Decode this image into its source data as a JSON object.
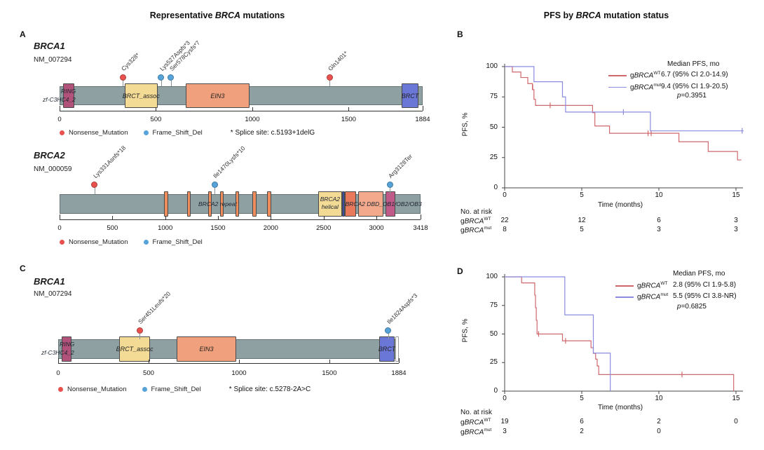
{
  "titles": {
    "left": {
      "pre": "Representative ",
      "italic": "BRCA",
      "post": " mutations"
    },
    "right": {
      "pre": "PFS by ",
      "italic": "BRCA",
      "post": " mutation status"
    }
  },
  "panel_letters": {
    "A": "A",
    "B": "B",
    "C": "C",
    "D": "D"
  },
  "colors": {
    "bar": "#8fa0a3",
    "bar_border": "#647274",
    "nonsense": "#e8514e",
    "frameshift": "#55a3d9",
    "km_wt": "#cf686d",
    "km_mut": "#8b8ce1",
    "axis": "#333333"
  },
  "chart_data": [
    {
      "type": "lollipop",
      "panel": "A",
      "gene": "BRCA1",
      "transcript": "NM_007294",
      "length": 1884,
      "axis_ticks": [
        0,
        500,
        1000,
        1500,
        1884
      ],
      "domains": [
        {
          "name": "RING",
          "start": 20,
          "end": 75,
          "color": "#b0527a",
          "label": ""
        },
        {
          "name": "BRCT_assoc",
          "start": 338,
          "end": 508,
          "color": "#f3db96",
          "label": "BRCT_assoc"
        },
        {
          "name": "EIN3",
          "start": 655,
          "end": 985,
          "color": "#f0a07c",
          "label": "EIN3"
        },
        {
          "name": "BRCT",
          "start": 1775,
          "end": 1862,
          "color": "#6b77d6",
          "label": "BRCT"
        }
      ],
      "inline_labels": {
        "ring1": "RING",
        "ring2": "zf-C3HC4_2"
      },
      "mutations": [
        {
          "label": "Cys328*",
          "pos": 328,
          "type": "nonsense"
        },
        {
          "label": "Lys527Aspfs*3",
          "pos": 527,
          "type": "frameshift"
        },
        {
          "label": "Ser578Cysfs*7",
          "pos": 578,
          "type": "frameshift"
        },
        {
          "label": "Gln1401*",
          "pos": 1401,
          "type": "nonsense"
        }
      ],
      "legend": [
        {
          "type": "nonsense",
          "label": "Nonsense_Mutation"
        },
        {
          "type": "frameshift",
          "label": "Frame_Shift_Del"
        }
      ],
      "note": "* Splice site: c.5193+1delG"
    },
    {
      "type": "lollipop",
      "panel": "A",
      "gene": "BRCA2",
      "transcript": "NM_000059",
      "length": 3418,
      "axis_ticks": [
        0,
        500,
        1000,
        1500,
        2000,
        2500,
        3000,
        3418
      ],
      "domains": [
        {
          "name": "BRCA2 repeat",
          "start": 990,
          "end": 1026,
          "color": "#ef8d5c",
          "label": ""
        },
        {
          "name": "BRCA2 repeat",
          "start": 1208,
          "end": 1244,
          "color": "#ef8d5c",
          "label": ""
        },
        {
          "name": "BRCA2 repeat",
          "start": 1406,
          "end": 1442,
          "color": "#ef8d5c",
          "label": ""
        },
        {
          "name": "BRCA2 repeat",
          "start": 1518,
          "end": 1554,
          "color": "#ef8d5c",
          "label": ""
        },
        {
          "name": "BRCA2 repeat",
          "start": 1663,
          "end": 1699,
          "color": "#ef8d5c",
          "label": ""
        },
        {
          "name": "BRCA2 repeat",
          "start": 1828,
          "end": 1864,
          "color": "#ef8d5c",
          "label": ""
        },
        {
          "name": "BRCA2 repeat",
          "start": 1967,
          "end": 2003,
          "color": "#ef8d5c",
          "label": ""
        },
        {
          "name": "BRCA2 helical",
          "start": 2450,
          "end": 2672,
          "color": "#f3db96",
          "label": ""
        },
        {
          "name": "separator",
          "start": 2672,
          "end": 2700,
          "color": "#3d4e9e",
          "label": ""
        },
        {
          "name": "BRCA2 DBD_OB1",
          "start": 2700,
          "end": 2810,
          "color": "#e8795a",
          "label": ""
        },
        {
          "name": "BRCA2 DBD_OB2",
          "start": 2830,
          "end": 3065,
          "color": "#f3a98b",
          "label": ""
        },
        {
          "name": "BRCA2 DBD_OB3",
          "start": 3085,
          "end": 3180,
          "color": "#c05a88",
          "label": ""
        }
      ],
      "inline_labels": {
        "repeat": "BRCA2 repeat",
        "helical1": "BRCA2",
        "helical2": "helical",
        "dbd": "BRCA2 DBD_OB1/OB2/OB3"
      },
      "mutations": [
        {
          "label": "Lys331Asnfs*18",
          "pos": 331,
          "type": "nonsense"
        },
        {
          "label": "Ile1470Lysfs*10",
          "pos": 1470,
          "type": "frameshift"
        },
        {
          "label": "Arg3128Ter",
          "pos": 3128,
          "type": "frameshift"
        }
      ],
      "legend": [
        {
          "type": "nonsense",
          "label": "Nonsense_Mutation"
        },
        {
          "type": "frameshift",
          "label": "Frame_Shift_Del"
        }
      ],
      "note": ""
    },
    {
      "type": "km",
      "panel": "B",
      "ylabel": "PFS, %",
      "xlabel": "Time (months)",
      "yticks": [
        0,
        25,
        50,
        75,
        100
      ],
      "xticks": [
        0,
        5,
        10,
        15
      ],
      "legend_header": "Median PFS, mo",
      "p_sym": "p",
      "p_text": "=0.3951",
      "series": [
        {
          "id": "wt",
          "prefix": "g",
          "gene": "BRCA",
          "sup": "WT",
          "median": "6.7 (95% CI 2.0-14.9)",
          "steps": [
            [
              0,
              100
            ],
            [
              0.5,
              100
            ],
            [
              0.5,
              95.5
            ],
            [
              1.05,
              95.5
            ],
            [
              1.05,
              91
            ],
            [
              1.5,
              91
            ],
            [
              1.5,
              86
            ],
            [
              1.8,
              86
            ],
            [
              1.8,
              81
            ],
            [
              1.9,
              81
            ],
            [
              1.9,
              73
            ],
            [
              2.0,
              73
            ],
            [
              2.0,
              68
            ],
            [
              5.7,
              68
            ],
            [
              5.7,
              62
            ],
            [
              5.85,
              62
            ],
            [
              5.85,
              51
            ],
            [
              6.8,
              51
            ],
            [
              6.8,
              45
            ],
            [
              11.3,
              45
            ],
            [
              11.3,
              38
            ],
            [
              13.2,
              38
            ],
            [
              13.2,
              30
            ],
            [
              15.1,
              30
            ],
            [
              15.1,
              23
            ],
            [
              15.35,
              23
            ]
          ],
          "censors": [
            [
              1.82,
              83
            ],
            [
              2.95,
              68
            ],
            [
              9.3,
              45
            ],
            [
              9.5,
              45
            ]
          ]
        },
        {
          "id": "mut",
          "prefix": "g",
          "gene": "BRCA",
          "sup": "mut",
          "median": "9.4 (95% CI 1.9-20.5)",
          "steps": [
            [
              0,
              100
            ],
            [
              1.9,
              100
            ],
            [
              1.9,
              87.5
            ],
            [
              3.75,
              87.5
            ],
            [
              3.75,
              75
            ],
            [
              3.95,
              75
            ],
            [
              3.95,
              62.5
            ],
            [
              9.45,
              62.5
            ],
            [
              9.45,
              47
            ],
            [
              15.5,
              47
            ]
          ],
          "censors": [
            [
              7.7,
              62.5
            ],
            [
              15.4,
              47
            ]
          ]
        }
      ],
      "risk_header": "No. at risk",
      "risk": [
        {
          "prefix": "g",
          "gene": "BRCA",
          "sup": "WT",
          "values": [
            "22",
            "12",
            "6",
            "3"
          ]
        },
        {
          "prefix": "g",
          "gene": "BRCA",
          "sup": "mut",
          "values": [
            "8",
            "5",
            "3",
            "3"
          ]
        }
      ]
    },
    {
      "type": "lollipop",
      "panel": "C",
      "gene": "BRCA1",
      "transcript": "NM_007294",
      "length": 1884,
      "axis_ticks": [
        0,
        500,
        1000,
        1500,
        1884
      ],
      "domains": [
        {
          "name": "RING",
          "start": 20,
          "end": 75,
          "color": "#b0527a",
          "label": ""
        },
        {
          "name": "BRCT_assoc",
          "start": 338,
          "end": 508,
          "color": "#f3db96",
          "label": "BRCT_assoc"
        },
        {
          "name": "EIN3",
          "start": 655,
          "end": 985,
          "color": "#f0a07c",
          "label": "EIN3"
        },
        {
          "name": "BRCT",
          "start": 1775,
          "end": 1862,
          "color": "#6b77d6",
          "label": "BRCT"
        },
        {
          "name": "end-segment",
          "start": 1864,
          "end": 1884,
          "color": "#ffffff",
          "label": ""
        }
      ],
      "inline_labels": {
        "ring1": "RING",
        "ring2": "zf-C3HC4_2"
      },
      "mutations": [
        {
          "label": "Ser451Leufs*20",
          "pos": 451,
          "type": "nonsense"
        },
        {
          "label": "Ile1824Aspfs*3",
          "pos": 1824,
          "type": "frameshift"
        }
      ],
      "legend": [
        {
          "type": "nonsense",
          "label": "Nonsense_Mutation"
        },
        {
          "type": "frameshift",
          "label": "Frame_Shift_Del"
        }
      ],
      "note": "* Splice site: c.5278-2A>C"
    },
    {
      "type": "km",
      "panel": "D",
      "ylabel": "PFS, %",
      "xlabel": "Time (months)",
      "yticks": [
        0,
        25,
        50,
        75,
        100
      ],
      "xticks": [
        0,
        5,
        10,
        15
      ],
      "legend_header": "Median PFS, mo",
      "p_sym": "p",
      "p_text": "=0.6825",
      "series": [
        {
          "id": "wt",
          "prefix": "g",
          "gene": "BRCA",
          "sup": "WT",
          "median": "2.8 (95% CI 1.9-5.8)",
          "steps": [
            [
              0,
              100
            ],
            [
              1.1,
              100
            ],
            [
              1.1,
              94.7
            ],
            [
              1.95,
              94.7
            ],
            [
              1.95,
              84
            ],
            [
              2.0,
              84
            ],
            [
              2.0,
              73
            ],
            [
              2.05,
              73
            ],
            [
              2.05,
              62
            ],
            [
              2.1,
              62
            ],
            [
              2.1,
              50
            ],
            [
              3.75,
              50
            ],
            [
              3.75,
              44
            ],
            [
              5.6,
              44
            ],
            [
              5.6,
              38
            ],
            [
              5.75,
              38
            ],
            [
              5.75,
              33
            ],
            [
              5.9,
              33
            ],
            [
              5.9,
              28
            ],
            [
              6.0,
              28
            ],
            [
              6.0,
              22
            ],
            [
              6.1,
              22
            ],
            [
              6.1,
              14.5
            ],
            [
              14.85,
              14.5
            ],
            [
              14.85,
              0
            ]
          ],
          "censors": [
            [
              2.2,
              50
            ],
            [
              3.95,
              44
            ],
            [
              11.5,
              14.5
            ]
          ]
        },
        {
          "id": "mut",
          "prefix": "g",
          "gene": "BRCA",
          "sup": "mut",
          "median": "5.5 (95% CI 3.8-NR)",
          "steps": [
            [
              0,
              100
            ],
            [
              3.9,
              100
            ],
            [
              3.9,
              66.7
            ],
            [
              5.75,
              66.7
            ],
            [
              5.75,
              33.3
            ],
            [
              6.85,
              33.3
            ],
            [
              6.85,
              0
            ]
          ],
          "censors": []
        }
      ],
      "risk_header": "No. at risk",
      "risk": [
        {
          "prefix": "g",
          "gene": "BRCA",
          "sup": "WT",
          "values": [
            "19",
            "6",
            "2",
            "0"
          ]
        },
        {
          "prefix": "g",
          "gene": "BRCA",
          "sup": "mut",
          "values": [
            "3",
            "2",
            "0",
            ""
          ]
        }
      ]
    }
  ]
}
